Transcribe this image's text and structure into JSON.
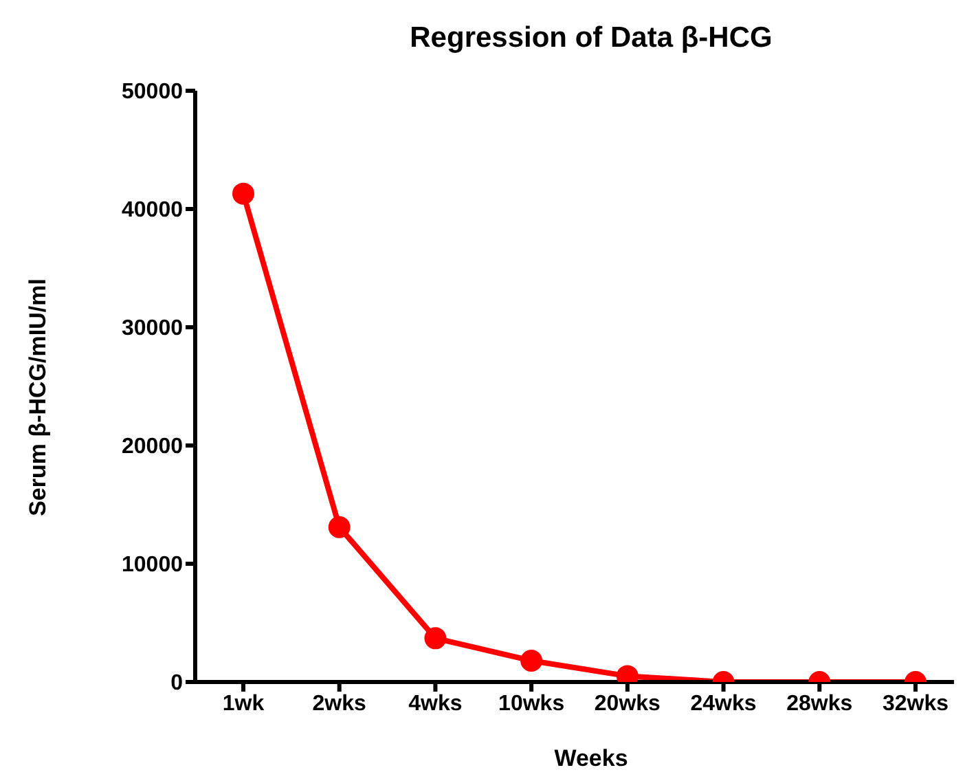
{
  "chart_data": {
    "type": "line",
    "title": "Regression of Data β-HCG",
    "xlabel": "Weeks",
    "ylabel": "Serum β-HCG/mIU/ml",
    "categories": [
      "1wk",
      "2wks",
      "4wks",
      "10wks",
      "20wks",
      "24wks",
      "28wks",
      "32wks"
    ],
    "series": [
      {
        "color": "#ff0000",
        "values": [
          41300,
          13100,
          3700,
          1800,
          500,
          0,
          0,
          0
        ]
      }
    ],
    "ylim": [
      0,
      50000
    ],
    "yticks": [
      0,
      10000,
      20000,
      30000,
      40000,
      50000
    ],
    "grid": false,
    "legend": false,
    "marker": "circle",
    "line_style": "solid"
  }
}
